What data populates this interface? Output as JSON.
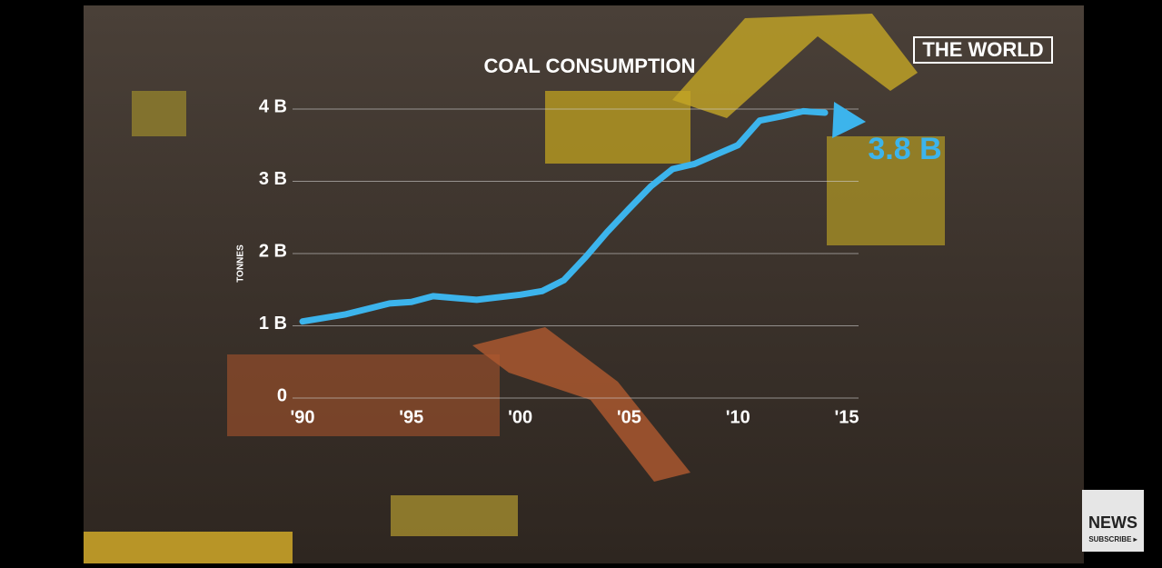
{
  "chart_data": {
    "type": "line",
    "title": "COAL CONSUMPTION",
    "y_label": "TONNES",
    "x": [
      1990,
      1992,
      1994,
      1995,
      1996,
      1998,
      2000,
      2001,
      2002,
      2003,
      2004,
      2005,
      2006,
      2007,
      2008,
      2009,
      2010,
      2011,
      2012,
      2013,
      2014
    ],
    "series": [
      {
        "name": "Coal consumption",
        "color": "#3cb4ec",
        "values": [
          1.06,
          1.16,
          1.31,
          1.33,
          1.41,
          1.36,
          1.43,
          1.48,
          1.63,
          1.95,
          2.3,
          2.62,
          2.93,
          3.17,
          3.24,
          3.37,
          3.5,
          3.84,
          3.9,
          3.97,
          3.95
        ]
      }
    ],
    "xlim": [
      1990,
      2015
    ],
    "xticks": [
      {
        "value": 1990,
        "label": "'90"
      },
      {
        "value": 1995,
        "label": "'95"
      },
      {
        "value": 2000,
        "label": "'00"
      },
      {
        "value": 2005,
        "label": "'05"
      },
      {
        "value": 2010,
        "label": "'10"
      },
      {
        "value": 2015,
        "label": "'15"
      }
    ],
    "ylim": [
      0,
      4
    ],
    "yticks": [
      0,
      {
        "value": 1,
        "label": "1 B"
      },
      {
        "value": 2,
        "label": "2 B"
      },
      {
        "value": 3,
        "label": "3 B"
      },
      {
        "value": 4,
        "label": "4 B"
      }
    ],
    "grid": true,
    "annotation": "3.8 B"
  },
  "overlay": {
    "channel_logo": "THE WORLD",
    "news_logo": "NEWS",
    "subscribe": "SUBSCRIBE ▸"
  }
}
